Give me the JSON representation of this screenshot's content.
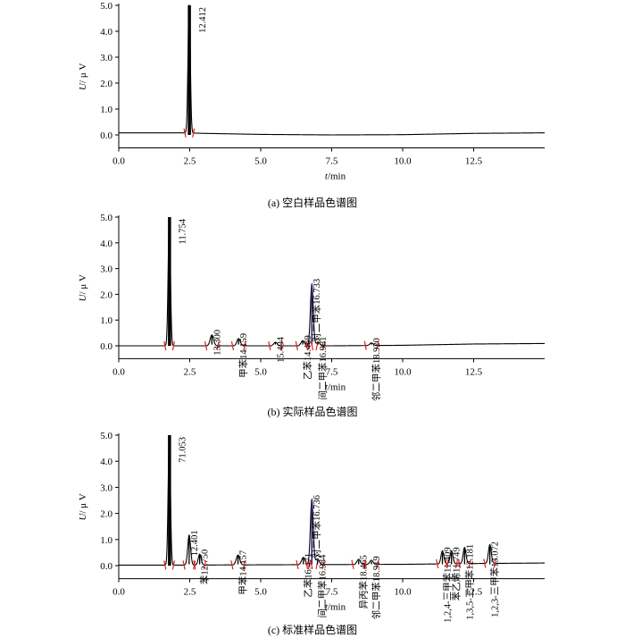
{
  "chart_data": [
    {
      "type": "line",
      "caption": "(a) 空白样品色谱图",
      "xlabel_var": "t",
      "xlabel_unit": "/min",
      "ylabel_var": "U",
      "ylabel_unit": "/ μ V",
      "xlim": [
        0,
        15
      ],
      "ylim": [
        -0.5,
        5
      ],
      "xticks": [
        "0.0",
        "2.5",
        "5.0",
        "7.5",
        "10.0",
        "12.5"
      ],
      "xtick_values": [
        0,
        2.5,
        5,
        7.5,
        10,
        12.5
      ],
      "yticks": [
        "0.0",
        "1.0",
        "2.0",
        "3.0",
        "4.0",
        "5.0"
      ],
      "ytick_values": [
        0,
        1,
        2,
        3,
        4,
        5
      ],
      "peaks": [
        {
          "x": 2.48,
          "height": 5.0,
          "width": 0.04,
          "label": "12.412"
        }
      ],
      "drift": [
        [
          0,
          0.08
        ],
        [
          2.4,
          0.08
        ],
        [
          3.0,
          0.06
        ],
        [
          5.0,
          0.02
        ],
        [
          7.5,
          0.0
        ],
        [
          10.0,
          0.01
        ],
        [
          12.5,
          0.06
        ],
        [
          15,
          0.08
        ]
      ]
    },
    {
      "type": "line",
      "caption": "(b) 实际样品色谱图",
      "xlabel_var": "t",
      "xlabel_unit": "/min",
      "ylabel_var": "U",
      "ylabel_unit": "/ μ V",
      "xlim": [
        0,
        15
      ],
      "ylim": [
        -0.5,
        5
      ],
      "xticks": [
        "0.0",
        "2.5",
        "5.0",
        "7.5",
        "10.0",
        "12.5"
      ],
      "xtick_values": [
        0,
        2.5,
        5,
        7.5,
        10,
        12.5
      ],
      "yticks": [
        "0.0",
        "1.0",
        "2.0",
        "3.0",
        "4.0",
        "5.0"
      ],
      "ytick_values": [
        0,
        1,
        2,
        3,
        4,
        5
      ],
      "peaks": [
        {
          "x": 1.78,
          "height": 5.0,
          "width": 0.04,
          "label": "11.754"
        },
        {
          "x": 3.28,
          "height": 0.42,
          "width": 0.06,
          "label": "13.300"
        },
        {
          "x": 4.22,
          "height": 0.28,
          "width": 0.06,
          "label": "甲苯14.159"
        },
        {
          "x": 5.52,
          "height": 0.14,
          "width": 0.06,
          "label": "15.494"
        },
        {
          "x": 6.48,
          "height": 0.2,
          "width": 0.06,
          "label": "乙苯14.469"
        },
        {
          "x": 6.8,
          "height": 2.4,
          "width": 0.05,
          "label": "对二甲苯16.733"
        },
        {
          "x": 7.02,
          "height": 0.15,
          "width": 0.06,
          "label": "间二甲苯16.981"
        },
        {
          "x": 8.9,
          "height": 0.1,
          "width": 0.06,
          "label": "邻二甲苯18.920"
        }
      ],
      "drift": [
        [
          0,
          0.0
        ],
        [
          2.0,
          0.0
        ],
        [
          7.5,
          0.0
        ],
        [
          10.0,
          0.02
        ],
        [
          12.5,
          0.07
        ],
        [
          15,
          0.09
        ]
      ]
    },
    {
      "type": "line",
      "caption": "(c) 标准样品色谱图",
      "xlabel_var": "t",
      "xlabel_unit": "/min",
      "ylabel_var": "U",
      "ylabel_unit": "/ μ V",
      "xlim": [
        0,
        15
      ],
      "ylim": [
        -0.5,
        5
      ],
      "xticks": [
        "0.0",
        "2.5",
        "5.0",
        "7.5",
        "10.0",
        "12.5"
      ],
      "xtick_values": [
        0,
        2.5,
        5,
        7.5,
        10,
        12.5
      ],
      "yticks": [
        "0.0",
        "1.0",
        "2.0",
        "3.0",
        "4.0",
        "5.0"
      ],
      "ytick_values": [
        0,
        1,
        2,
        3,
        4,
        5
      ],
      "peaks": [
        {
          "x": 1.78,
          "height": 5.0,
          "width": 0.04,
          "label": "71.053"
        },
        {
          "x": 2.48,
          "height": 1.15,
          "width": 0.05,
          "label": "12.401"
        },
        {
          "x": 2.85,
          "height": 0.42,
          "width": 0.05,
          "label": "苯12.750"
        },
        {
          "x": 4.2,
          "height": 0.38,
          "width": 0.06,
          "label": "甲苯14.157"
        },
        {
          "x": 6.5,
          "height": 0.28,
          "width": 0.06,
          "label": "乙苯16.471"
        },
        {
          "x": 6.8,
          "height": 2.5,
          "width": 0.05,
          "label": "对二甲苯16.736"
        },
        {
          "x": 7.0,
          "height": 0.22,
          "width": 0.06,
          "label": "间二甲苯16.984"
        },
        {
          "x": 8.45,
          "height": 0.2,
          "width": 0.06,
          "label": "异丙苯18.465"
        },
        {
          "x": 8.9,
          "height": 0.16,
          "width": 0.06,
          "label": "邻二甲苯18.919"
        },
        {
          "x": 11.4,
          "height": 0.5,
          "width": 0.05,
          "label": "1,2,4-三甲苯11.409"
        },
        {
          "x": 11.72,
          "height": 0.5,
          "width": 0.05,
          "label": "苯乙烯11.749"
        },
        {
          "x": 12.18,
          "height": 0.62,
          "width": 0.05,
          "label": "1,3,5-三甲苯12.181"
        },
        {
          "x": 13.07,
          "height": 0.72,
          "width": 0.05,
          "label": "1,2,3-三甲苯13.072"
        }
      ],
      "drift": [
        [
          0,
          0.02
        ],
        [
          2.0,
          0.02
        ],
        [
          7.5,
          0.04
        ],
        [
          10.0,
          0.05
        ],
        [
          12.5,
          0.08
        ],
        [
          15,
          0.1
        ]
      ]
    }
  ]
}
